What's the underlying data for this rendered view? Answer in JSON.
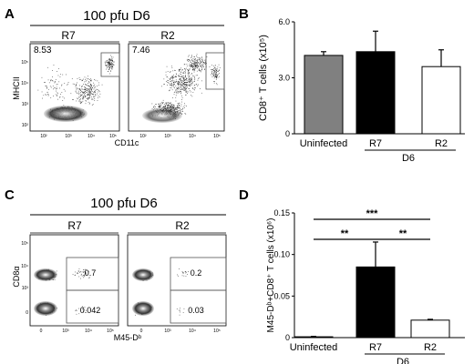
{
  "panels": {
    "A": {
      "letter": "A",
      "title": "100 pfu D6",
      "subpanels": [
        {
          "label": "R7",
          "gate_value": "8.53"
        },
        {
          "label": "R2",
          "gate_value": "7.46"
        }
      ],
      "ylabel": "MHCII",
      "xlabel": "CD11c",
      "x_ticks": [
        "10²",
        "10³",
        "10⁴",
        "10⁵"
      ],
      "y_ticks": [
        "10²",
        "10³",
        "10⁴",
        "10⁵"
      ]
    },
    "C": {
      "letter": "C",
      "title": "100 pfu D6",
      "subpanels": [
        {
          "label": "R7",
          "upper_value": "0.7",
          "lower_value": "0.042"
        },
        {
          "label": "R2",
          "upper_value": "0.2",
          "lower_value": "0.03"
        }
      ],
      "ylabel": "CD8α",
      "xlabel": "M45-Dᵇ",
      "x_ticks": [
        "0",
        "10³",
        "10⁴",
        "10⁵"
      ],
      "y_ticks": [
        "0",
        "10³",
        "10⁴",
        "10⁵"
      ]
    }
  },
  "chart_data": [
    {
      "panel": "B",
      "type": "bar",
      "ylabel": "CD8⁺ T cells (x10⁵)",
      "ylim": [
        0,
        6
      ],
      "yticks": [
        "0",
        "3.0",
        "6.0"
      ],
      "categories": [
        "Uninfected",
        "R7",
        "R2"
      ],
      "values": [
        4.2,
        4.4,
        3.6
      ],
      "errors": [
        0.2,
        1.1,
        0.9
      ],
      "colors": [
        "#808080",
        "#000000",
        "#ffffff"
      ],
      "group_label": "D6",
      "significance": []
    },
    {
      "panel": "D",
      "type": "bar",
      "ylabel": "M45-Dᵇ+CD8⁺ T cells (x10⁶)",
      "ylim": [
        0,
        0.15
      ],
      "yticks": [
        "0",
        "0.05",
        "0.10",
        "0.15"
      ],
      "categories": [
        "Uninfected",
        "R7",
        "R2"
      ],
      "values": [
        0.001,
        0.085,
        0.021
      ],
      "errors": [
        0.0005,
        0.03,
        0.001
      ],
      "colors": [
        "#808080",
        "#000000",
        "#ffffff"
      ],
      "group_label": "D6",
      "significance": [
        {
          "from": 0,
          "to": 2,
          "label": "***"
        },
        {
          "from": 0,
          "to": 1,
          "label": "**"
        },
        {
          "from": 1,
          "to": 2,
          "label": "**"
        }
      ]
    }
  ]
}
